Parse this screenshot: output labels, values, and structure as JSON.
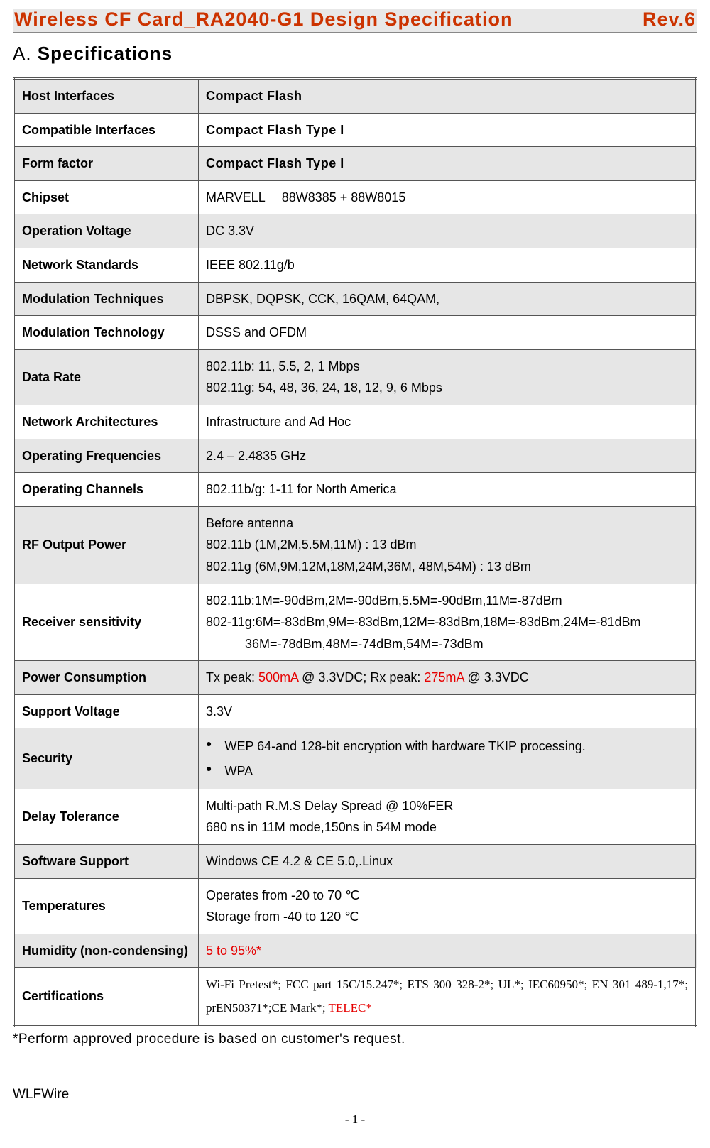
{
  "header": {
    "title": "Wireless CF Card_RA2040-G1 Design Specification",
    "rev": "Rev.6"
  },
  "section": {
    "prefix": "A. ",
    "label": "Specifications"
  },
  "rows": [
    {
      "key": "Host Interfaces",
      "plain": "Compact Flash",
      "bold": true
    },
    {
      "key": "Compatible Interfaces",
      "plain": "Compact Flash Type I",
      "bold": true
    },
    {
      "key": "Form factor",
      "plain": "Compact Flash Type I",
      "bold": true
    },
    {
      "key": "Chipset",
      "plain": "MARVELL  88W8385 + 88W8015"
    },
    {
      "key": "Operation Voltage",
      "plain": "DC 3.3V"
    },
    {
      "key": "Network Standards",
      "plain": "IEEE 802.11g/b"
    },
    {
      "key": "Modulation Techniques",
      "plain": "DBPSK, DQPSK, CCK, 16QAM, 64QAM,"
    },
    {
      "key": "Modulation Technology",
      "plain": "DSSS and OFDM"
    },
    {
      "key": "Data Rate",
      "lines": [
        "802.11b: 11, 5.5, 2, 1 Mbps",
        "802.11g: 54, 48, 36, 24, 18, 12, 9, 6 Mbps"
      ]
    },
    {
      "key": "Network Architectures",
      "plain": "Infrastructure and Ad Hoc"
    },
    {
      "key": "Operating Frequencies",
      "plain": "2.4 – 2.4835 GHz"
    },
    {
      "key": "Operating Channels",
      "plain": "802.11b/g: 1-11 for North America"
    },
    {
      "key": "RF Output Power",
      "lines": [
        "Before antenna",
        "802.11b (1M,2M,5.5M,11M) : 13 dBm",
        "802.11g (6M,9M,12M,18M,24M,36M, 48M,54M) : 13 dBm"
      ]
    },
    {
      "key": "Receiver sensitivity",
      "lines": [
        "802.11b:1M=-90dBm,2M=-90dBm,5.5M=-90dBm,11M=-87dBm",
        "802-11g:6M=-83dBm,9M=-83dBm,12M=-83dBm,18M=-83dBm,24M=-81dBm",
        "           36M=-78dBm,48M=-74dBm,54M=-73dBm"
      ]
    },
    {
      "key": "Power Consumption",
      "power": {
        "p1": "Tx peak: ",
        "r1": "500mA",
        "p2": " @ 3.3VDC; Rx peak: ",
        "r2": "275mA",
        "p3": " @ 3.3VDC"
      }
    },
    {
      "key": "Support Voltage",
      "plain": "3.3V"
    },
    {
      "key": "Security",
      "bullets": [
        "WEP 64-and 128-bit encryption with hardware TKIP processing.",
        "WPA"
      ]
    },
    {
      "key": "Delay Tolerance",
      "lines": [
        "Multi-path R.M.S Delay Spread @ 10%FER",
        "680 ns in 11M mode,150ns in 54M mode"
      ]
    },
    {
      "key": "Software Support",
      "plain": "Windows CE 4.2 & CE 5.0,.Linux"
    },
    {
      "key": "Temperatures",
      "lines": [
        "Operates from -20 to 70 ℃",
        "Storage from -40 to 120 ℃"
      ]
    },
    {
      "key": "Humidity (non-condensing)",
      "plain": "5 to 95%*",
      "allred": true
    },
    {
      "key": "Certifications",
      "cert": {
        "main": "Wi-Fi Pretest*; FCC part 15C/15.247*; ETS 300 328-2*; UL*; IEC60950*; EN 301 489-1,17*; prEN50371*;CE Mark*; ",
        "red": "TELEC*"
      }
    }
  ],
  "footnote": "*Perform approved procedure is based on customer's request.",
  "brand": "WLFWire",
  "pagenum": "- 1 -",
  "bulletGlyph": "●"
}
